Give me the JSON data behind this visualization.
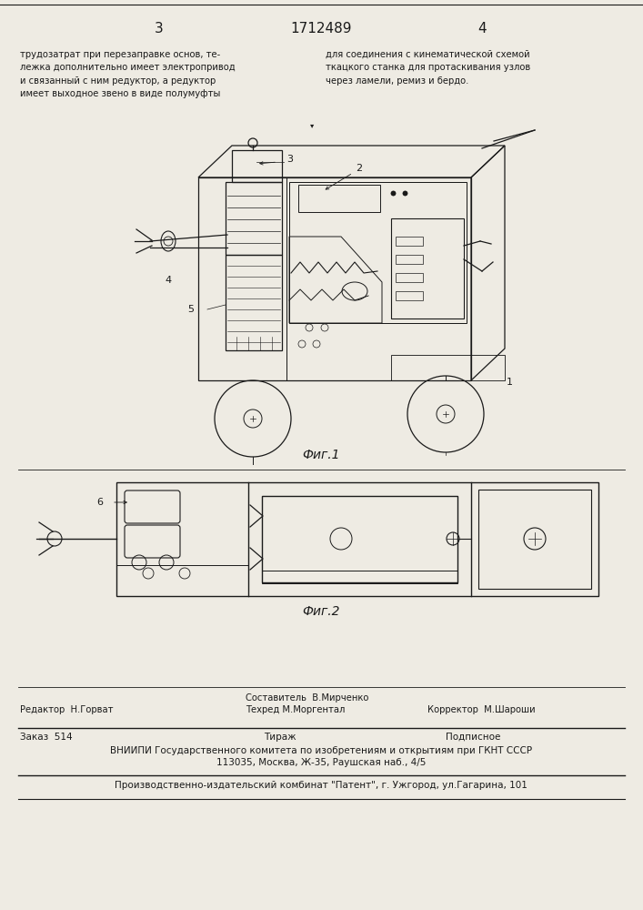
{
  "bg_color": "#eeebe3",
  "page_num_left": "3",
  "page_num_center": "1712489",
  "page_num_right": "4",
  "text_left_col": "трудозатрат при перезаправке основ, те-\nлежка дополнительно имеет электропривод\nи связанный с ним редуктор, а редуктор\nимеет выходное звено в виде полумуфты",
  "text_right_col": "для соединения с кинематической схемой\nткацкого станка для протаскивания узлов\nчерез ламели, ремиз и бердо.",
  "fig1_caption": "Фиг.1",
  "fig2_caption": "Фиг.2",
  "editor_line": "Редактор  Н.Горват",
  "composer_line1": "Составитель  В.Мирченко",
  "composer_line2": "Техред М.Моргентал",
  "corrector_line": "Корректор  М.Шароши",
  "order_line": "Заказ  514",
  "tirazh_line": "Тираж",
  "podpisnoe_line": "Подписное",
  "vniip_line": "ВНИИПИ Государственного комитета по изобретениям и открытиям при ГКНТ СССР",
  "address_line": "113035, Москва, Ж-35, Раушская наб., 4/5",
  "kombinator_line": "Производственно-издательский комбинат \"Патент\", г. Ужгород, ул.Гагарина, 101",
  "line_color": "#1a1a1a",
  "text_color": "#1a1a1a"
}
